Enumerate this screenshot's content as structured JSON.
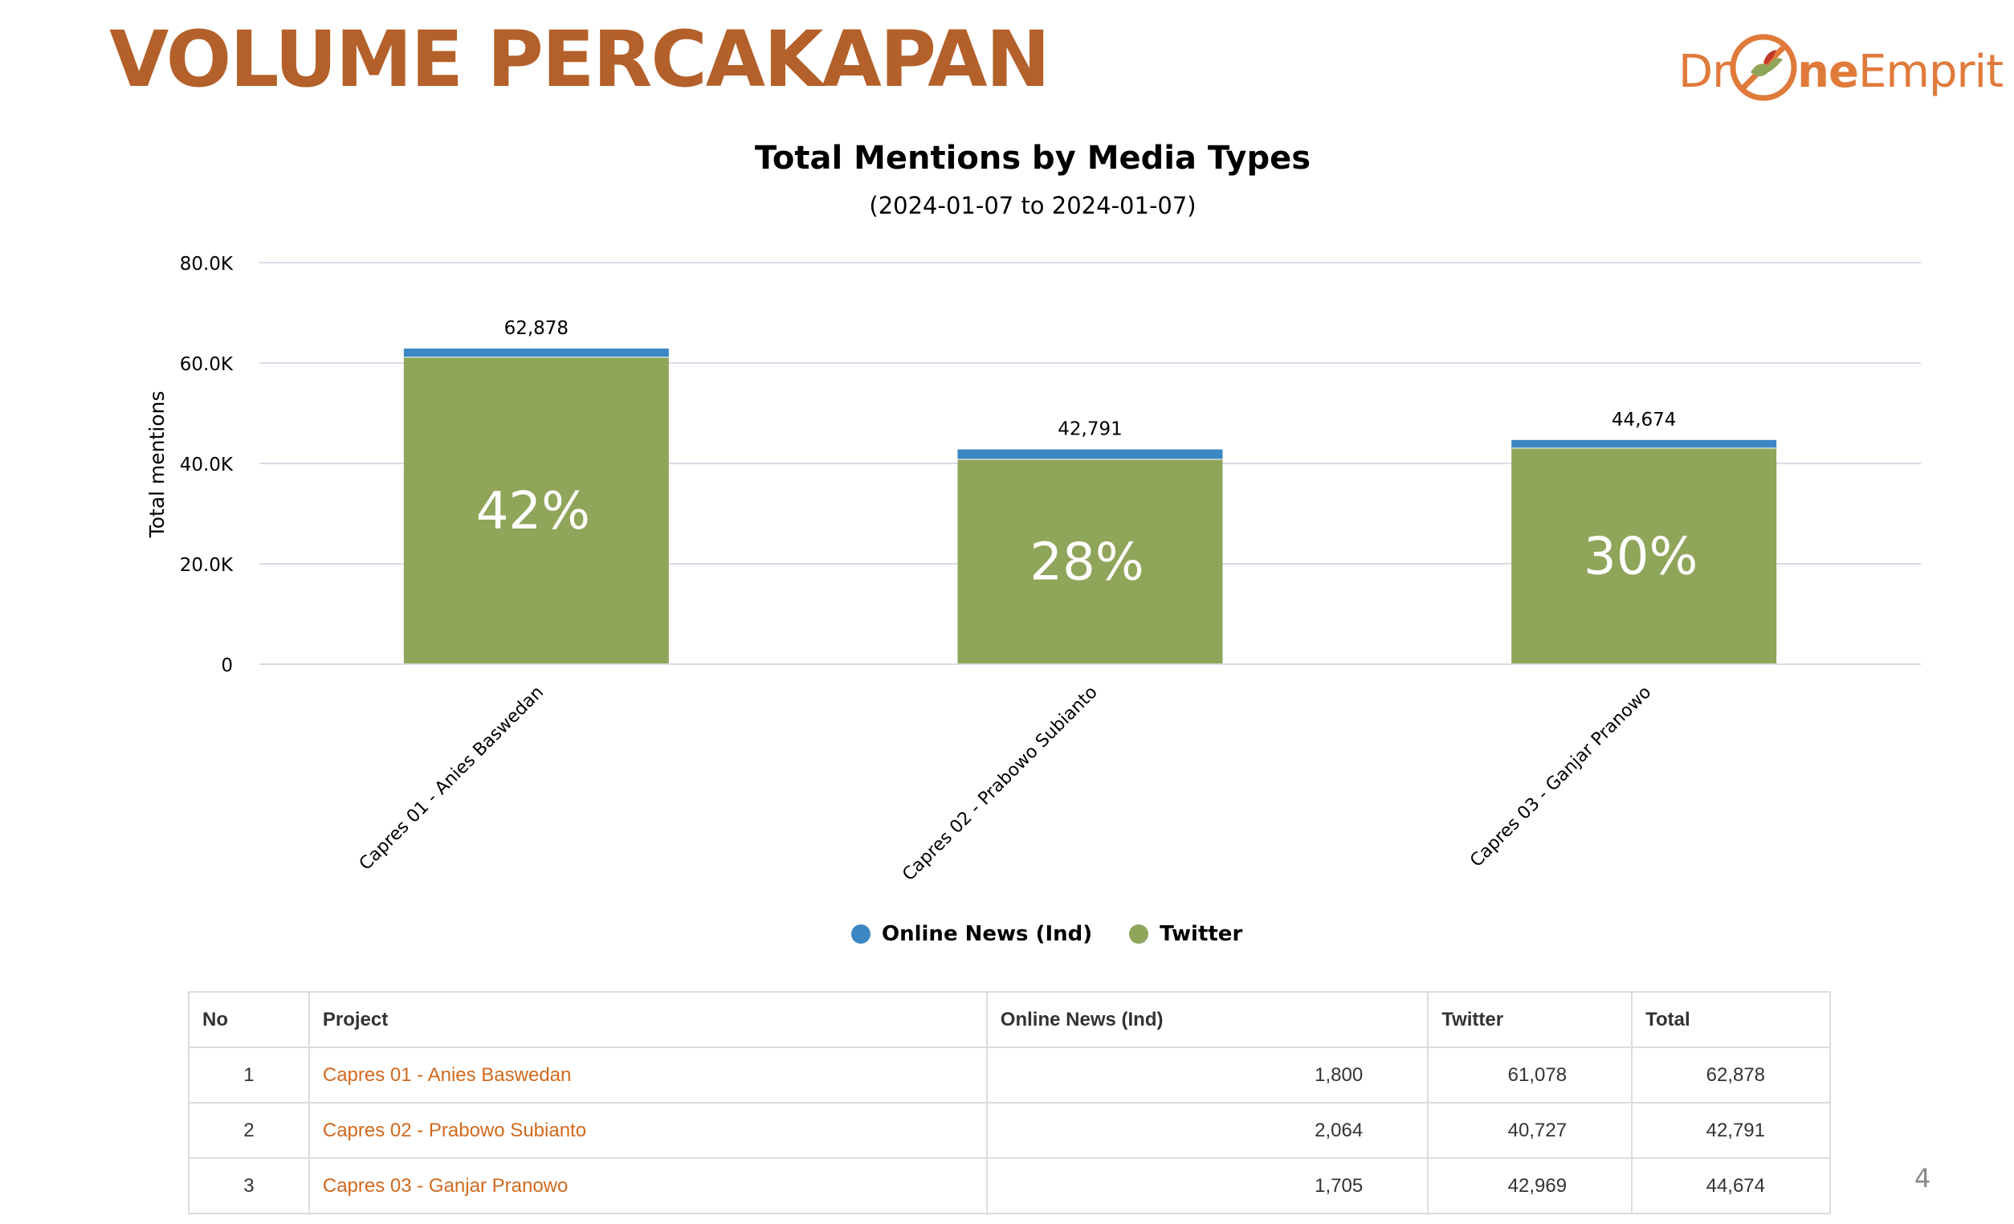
{
  "slide": {
    "title": "VOLUME PERCAKAPAN",
    "page_number": "4"
  },
  "logo": {
    "part1": "Dr",
    "part2": "ne",
    "part3": "Emprit"
  },
  "chart_data": {
    "type": "bar",
    "stacked": true,
    "title": "Total Mentions by Media Types",
    "subtitle": "(2024-01-07 to 2024-01-07)",
    "ylabel": "Total mentions",
    "xlabel": "",
    "ylim": [
      0,
      80000
    ],
    "yticks": [
      "0",
      "20.0K",
      "40.0K",
      "60.0K",
      "80.0K"
    ],
    "ytick_values": [
      0,
      20000,
      40000,
      60000,
      80000
    ],
    "categories": [
      "Capres 01 - Anies Baswedan",
      "Capres 02 - Prabowo Subianto",
      "Capres 03 - Ganjar Pranowo"
    ],
    "series": [
      {
        "name": "Twitter",
        "values": [
          61078,
          40727,
          42969
        ],
        "color": "#8FA55A"
      },
      {
        "name": "Online News (Ind)",
        "values": [
          1800,
          2064,
          1705
        ],
        "color": "#3B87C4"
      }
    ],
    "totals_labels": [
      "62,878",
      "42,791",
      "44,674"
    ],
    "share_labels": [
      "42%",
      "28%",
      "30%"
    ],
    "grid": true,
    "legend_position": "bottom"
  },
  "legend": [
    {
      "label": "Online News (Ind)",
      "color": "#3B87C4"
    },
    {
      "label": "Twitter",
      "color": "#8FA55A"
    }
  ],
  "table": {
    "headers": [
      "No",
      "Project",
      "Online News (Ind)",
      "Twitter",
      "Total"
    ],
    "rows": [
      [
        "1",
        "Capres 01 - Anies Baswedan",
        "1,800",
        "61,078",
        "62,878"
      ],
      [
        "2",
        "Capres 02 - Prabowo Subianto",
        "2,064",
        "40,727",
        "42,791"
      ],
      [
        "3",
        "Capres 03 - Ganjar Pranowo",
        "1,705",
        "42,969",
        "44,674"
      ]
    ]
  },
  "colors": {
    "title": "#B4602A",
    "link": "#D2691E",
    "twitter": "#8FA55A",
    "online_news": "#3B87C4"
  }
}
